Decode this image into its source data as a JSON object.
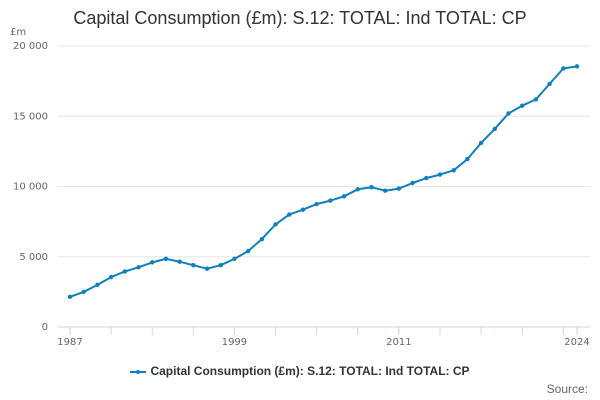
{
  "chart_data": {
    "type": "line",
    "title": "Capital Consumption (£m): S.12: TOTAL: Ind TOTAL: CP",
    "ylabel": "£m",
    "xlabel": "",
    "ylim": [
      0,
      20000
    ],
    "xlim": [
      1987,
      2024
    ],
    "y_ticks": [
      0,
      5000,
      10000,
      15000,
      20000
    ],
    "y_tick_labels": [
      "0",
      "5 000",
      "10 000",
      "15 000",
      "20 000"
    ],
    "x_tick_labels": [
      "1987",
      "1999",
      "2011",
      "2024"
    ],
    "x_tick_values": [
      1987,
      1999,
      2011,
      2024
    ],
    "grid": true,
    "legend_position": "bottom",
    "series": [
      {
        "name": "Capital Consumption (£m): S.12: TOTAL: Ind TOTAL: CP",
        "color": "#0f7fbf",
        "x": [
          1987,
          1988,
          1989,
          1990,
          1991,
          1992,
          1993,
          1994,
          1995,
          1996,
          1997,
          1998,
          1999,
          2000,
          2001,
          2002,
          2003,
          2004,
          2005,
          2006,
          2007,
          2008,
          2009,
          2010,
          2011,
          2012,
          2013,
          2014,
          2015,
          2016,
          2017,
          2018,
          2019,
          2020,
          2021,
          2022,
          2023,
          2024
        ],
        "values": [
          2150,
          2500,
          3000,
          3550,
          3950,
          4250,
          4600,
          4850,
          4650,
          4400,
          4150,
          4400,
          4850,
          5400,
          6250,
          7300,
          8000,
          8350,
          8750,
          9000,
          9300,
          9800,
          9950,
          9700,
          9850,
          10250,
          10600,
          10850,
          11150,
          11950,
          13100,
          14100,
          15200,
          15750,
          16200,
          17300,
          18400,
          18550
        ]
      }
    ]
  },
  "legend": {
    "label": "Capital Consumption (£m): S.12: TOTAL: Ind TOTAL: CP"
  },
  "footer": {
    "source_label": "Source:"
  }
}
